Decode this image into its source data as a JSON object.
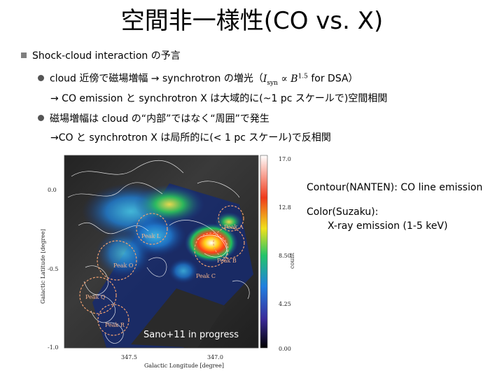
{
  "slide": {
    "title": "空間非一様性(CO vs. X)",
    "bullet1": "Shock-cloud interaction の予言",
    "sub1_a": "cloud 近傍で磁場増幅 → synchrotron の増光（",
    "sub1_I": "I",
    "sub1_sub": "syn",
    "sub1_prop": " ∝ ",
    "sub1_B": "B",
    "sub1_exp": "1.5",
    "sub1_b": " for DSA）",
    "sub1_cont": "→ CO emission と synchrotron X は大域的に(~1 pc スケールで)空間相関",
    "sub2": "磁場増幅は cloud の“内部”ではなく“周囲”で発生",
    "sub2_cont": "→CO と synchrotron X は局所的に(< 1 pc スケール)で反相関"
  },
  "figure": {
    "y_axis_label": "Galactic Latitude [degree]",
    "x_axis_label": "Galactic Longitude [degree]",
    "y_ticks": [
      "0.0",
      "-0.5",
      "-1.0"
    ],
    "x_ticks": [
      "347.5",
      "347.0"
    ],
    "colorbar_ticks": [
      "17.0",
      "12.8",
      "8.50",
      "4.25",
      "0.00"
    ],
    "colorbar_label": "count",
    "peaks": [
      "Peak L",
      "Peak O",
      "Peak C",
      "Peak Q",
      "Peak R",
      "Peak B",
      "Peak A"
    ],
    "credit": "Sano+11 in progress"
  },
  "captions": {
    "contour": "Contour(NANTEN): CO line emission",
    "color": "Color(Suzaku):",
    "color2": "X-ray emission (1-5 keV)"
  }
}
